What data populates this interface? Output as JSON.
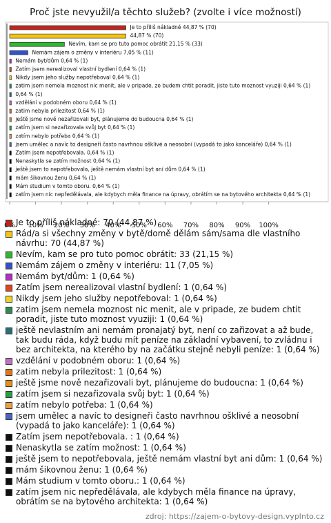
{
  "chart_data": {
    "type": "hbar",
    "title": "Proč jste nevyužil/a těchto služeb? (zvolte i více možností)",
    "categories": [
      "Je to příliš nákladné: 70 (44,87 %)",
      "Rád/a si všechny změny v bytě/domě dělám sám/sama dle vlastního návrhu: 70 (44,87 %)",
      "Nevím, kam se pro tuto pomoc obrátit: 33 (21,15 %)",
      "Nemám zájem o změny v interiéru: 11 (7,05 %)",
      "Nemám byt/dům: 1 (0,64 %)",
      "Zatím jsem nerealizoval vlastní bydlení: 1 (0,64 %)",
      "Nikdy jsem jeho služby nepotřeboval: 1 (0,64 %)",
      "zatim jsem nemela moznost nic menit, ale v pripade, ze budem chtit poradit, jiste tuto moznost vyuziji: 1 (0,64 %)",
      "ještě nevlastním ani nemám pronajatý byt, není co zařizovat a až bude, tak budu ráda, když budu mít peníze na základní vybavení, to zvládnu i bez architekta, na kterého by na začátku stejně nebyli peníze: 1 (0,64 %)",
      "vzdělání v podobném oboru: 1 (0,64 %)",
      "zatim nebyla prilezitost: 1 (0,64 %)",
      "ještě jsme nově nezařizovali byt, plánujeme do budoucna: 1 (0,64 %)",
      "zatím jsem si nezařizovala svůj byt: 1 (0,64 %)",
      "zatím nebylo potřeba: 1 (0,64 %)",
      "jsem umělec a navíc to designeři často navrhnou ošklivé a neosobní (vypadá to jako kanceláře): 1 (0,64 %)",
      "Zatím jsem nepotřebovala. : 1 (0,64 %)",
      "Nenaskytla se zatím možnost: 1 (0,64 %)",
      "ještě jsem to nepotřebovala, ještě nemám vlastní byt ani dům: 1 (0,64 %)",
      "mám šikovnou ženu: 1 (0,64 %)",
      "Mám studium v tomto oboru.: 1 (0,64 %)",
      "zatím jsem nic nepředělávala, ale kdybych měla finance na úpravy, obrátím se na bytového architekta: 1 (0,64 %)"
    ],
    "values": [
      44.87,
      44.87,
      21.15,
      7.05,
      0.64,
      0.64,
      0.64,
      0.64,
      0.64,
      0.64,
      0.64,
      0.64,
      0.64,
      0.64,
      0.64,
      0.64,
      0.64,
      0.64,
      0.64,
      0.64,
      0.64
    ],
    "value_labels": [
      "Je to příliš nákladné 44,87 % (70)",
      "44,87 % (70)",
      "Nevím, kam se pro tuto pomoc obrátit 21,15 % (33)",
      "Nemám zájem o změny v interiéru 7,05 % (11)",
      "Nemám byt/dům 0,64 % (1)",
      "Zatím jsem nerealizoval vlastní bydlení 0,64 % (1)",
      "Nikdy jsem jeho služby nepotřeboval 0,64 % (1)",
      "zatim jsem nemela moznost nic menit, ale v pripade, ze budem chtit poradit, jiste tuto moznost vyuziji 0,64 % (1)",
      "0,64 % (1)",
      "vzdělání v podobném oboru 0,64 % (1)",
      "zatim nebyla prilezitost 0,64 % (1)",
      "ještě jsme nově nezařizovali byt, plánujeme do budoucna 0,64 % (1)",
      "zatím jsem si nezařizovala svůj byt 0,64 % (1)",
      "zatím nebylo potřeba 0,64 % (1)",
      "jsem umělec a navíc to designeři často navrhnou ošklivé a neosobní (vypadá to jako kanceláře) 0,64 % (1)",
      "Zatím jsem nepotřebovala.  0,64 % (1)",
      "Nenaskytla se zatím možnost 0,64 % (1)",
      "ještě jsem to nepotřebovala, ještě nemám vlastní byt ani dům 0,64 % (1)",
      "mám šikovnou ženu 0,64 % (1)",
      "Mám studium v tomto oboru. 0,64 % (1)",
      "zatím jsem nic nepředělávala, ale kdybych měla finance na úpravy, obrátím se na bytového architekta 0,64 % (1)"
    ],
    "colors": [
      "#b8281e",
      "#f2c416",
      "#2fb82f",
      "#3352c8",
      "#b030c0",
      "#e0461e",
      "#e8d22a",
      "#2e8a50",
      "#2a6e78",
      "#c070c0",
      "#e07818",
      "#e09018",
      "#28a048",
      "#e8a040",
      "#4a64c0",
      "#111111",
      "#111111",
      "#111111",
      "#111111",
      "#111111",
      "#111111"
    ],
    "xlim": [
      0,
      123
    ],
    "xticks": [
      {
        "value": 0,
        "label": "0%"
      },
      {
        "value": 10,
        "label": "10%"
      },
      {
        "value": 20,
        "label": "20%"
      },
      {
        "value": 30,
        "label": "30%"
      },
      {
        "value": 40,
        "label": "40%"
      },
      {
        "value": 50,
        "label": "50%"
      },
      {
        "value": 60,
        "label": "60%"
      },
      {
        "value": 70,
        "label": "70%"
      },
      {
        "value": 80,
        "label": "80%"
      },
      {
        "value": 90,
        "label": "90%"
      },
      {
        "value": 100,
        "label": "100%"
      }
    ],
    "source": "zdroj: https://zajem-o-bytovy-design.vyplnto.cz"
  }
}
